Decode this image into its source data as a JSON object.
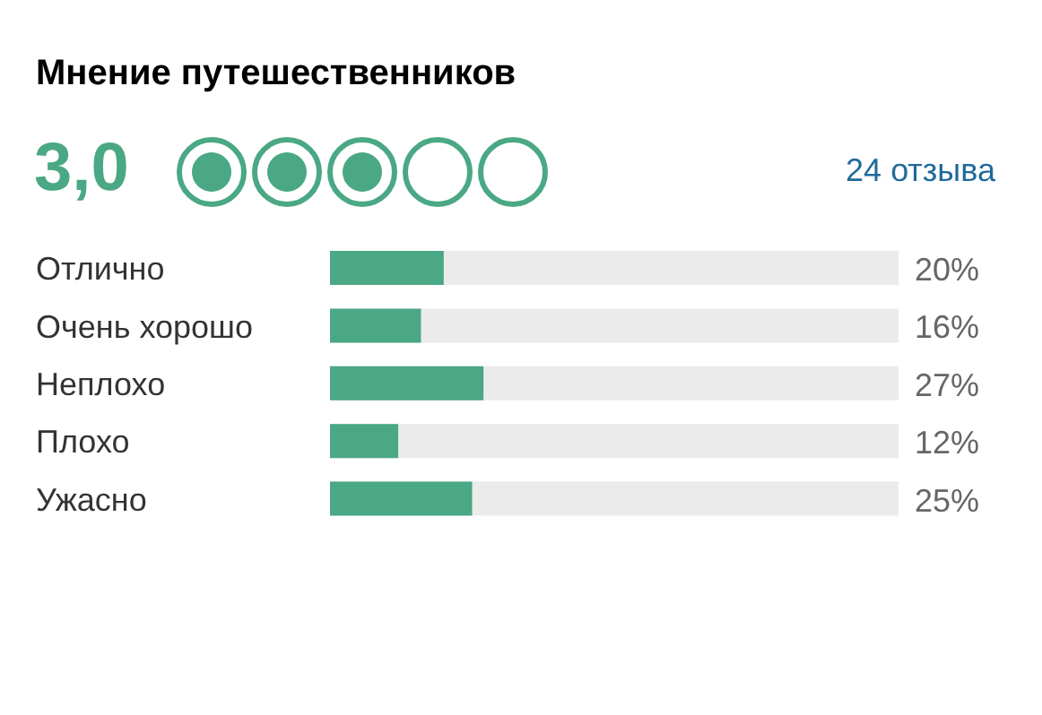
{
  "chart_data": {
    "type": "bar",
    "orientation": "horizontal",
    "title": "Мнение путешественников",
    "annotations": [
      "3,0",
      "24 отзыва"
    ],
    "categories": [
      "Отлично",
      "Очень хорошо",
      "Неплохо",
      "Плохо",
      "Ужасно"
    ],
    "values": [
      20,
      16,
      27,
      12,
      25
    ],
    "value_labels": [
      "20%",
      "16%",
      "27%",
      "12%",
      "25%"
    ],
    "color": "#4aa884",
    "xlim": [
      0,
      100
    ],
    "tick_labels": "y",
    "grid": false,
    "legend": false
  }
}
